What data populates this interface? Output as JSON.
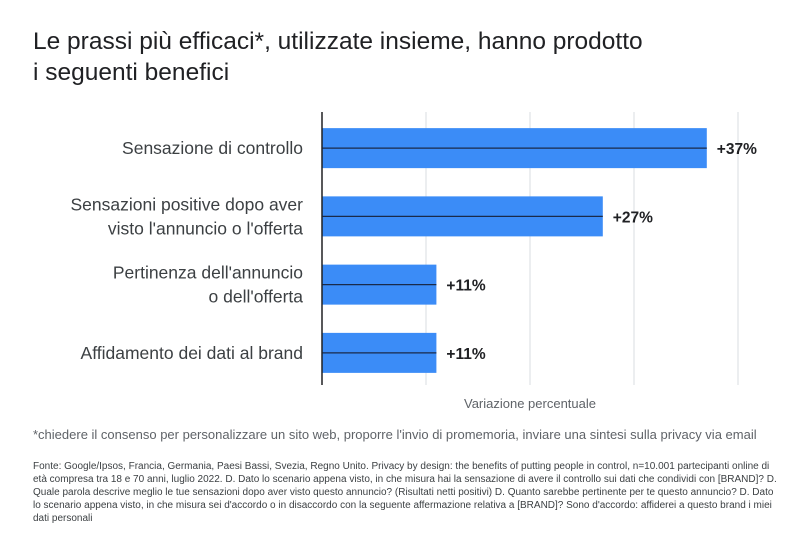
{
  "title": "Le prassi più efficaci*, utilizzate insieme, hanno prodotto\ni seguenti benefici",
  "footnote": "*chiedere il consenso per personalizzare un sito web, proporre l'invio di promemoria, inviare una sintesi sulla privacy via email",
  "source": "Fonte: Google/Ipsos, Francia, Germania, Paesi Bassi, Svezia, Regno Unito. Privacy by design: the benefits of putting people in control, n=10.001 partecipanti online di età compresa tra 18 e 70 anni, luglio 2022. D. Dato lo scenario appena visto, in che misura hai la sensazione di avere il controllo sui dati che condividi con [BRAND]? D. Quale parola descrive meglio le tue sensazioni dopo aver visto questo annuncio? (Risultati netti positivi) D. Quanto sarebbe pertinente per te questo annuncio? D. Dato lo scenario appena visto, in che misura sei d'accordo o in disaccordo con la seguente affermazione relativa a [BRAND]? Sono d'accordo: affiderei a questo brand i miei dati personali",
  "colors": {
    "bar": "#3b8cf7",
    "grid": "#dadce0",
    "axis": "#202124"
  },
  "chart_data": {
    "type": "bar",
    "orientation": "horizontal",
    "categories": [
      "Sensazione di controllo",
      "Sensazioni positive dopo aver\nvisto l'annuncio o l'offerta",
      "Pertinenza dell'annuncio\no dell'offerta",
      "Affidamento dei dati al brand"
    ],
    "values": [
      37,
      27,
      11,
      11
    ],
    "value_labels": [
      "+37%",
      "+27%",
      "+11%",
      "+11%"
    ],
    "xlabel": "Variazione percentuale",
    "xlim": [
      0,
      40
    ],
    "grid": true
  }
}
